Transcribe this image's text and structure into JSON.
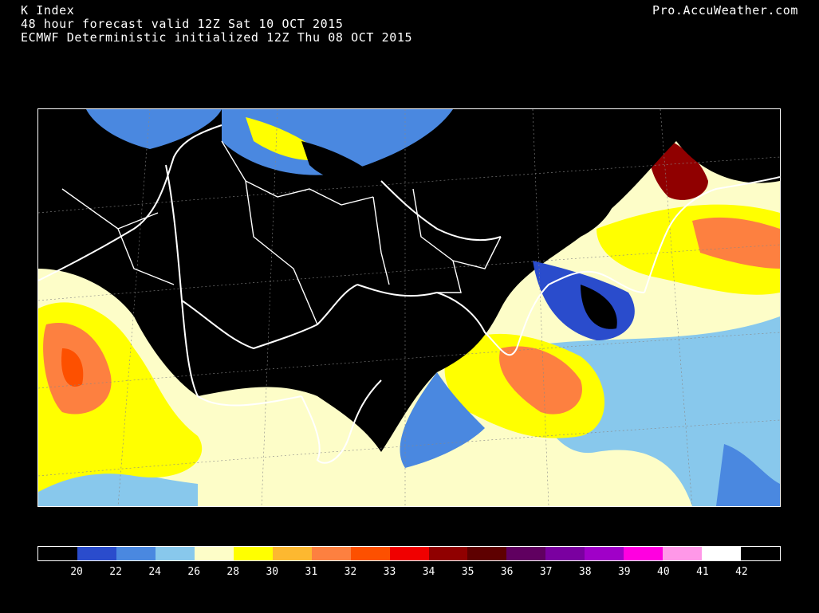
{
  "header": {
    "title": "K Index",
    "valid_line": "48 hour forecast valid 12Z Sat 10 OCT 2015",
    "init_line": "ECMWF Deterministic initialized 12Z Thu 08 OCT 2015",
    "brand": "Pro.AccuWeather.com"
  },
  "legend": {
    "colors": [
      "#000000",
      "#2a4ccc",
      "#4a88e0",
      "#88c8ec",
      "#fdfdc8",
      "#ffff00",
      "#fdb830",
      "#fd8040",
      "#fd5000",
      "#f00000",
      "#900000",
      "#5e0000",
      "#600060",
      "#7a00a0",
      "#a000c8",
      "#ff00e0",
      "#ff98e8",
      "#ffffff",
      "#000000"
    ],
    "tick_labels": [
      "20",
      "22",
      "24",
      "26",
      "28",
      "30",
      "31",
      "32",
      "33",
      "34",
      "35",
      "36",
      "37",
      "38",
      "39",
      "40",
      "41",
      "42"
    ]
  }
}
